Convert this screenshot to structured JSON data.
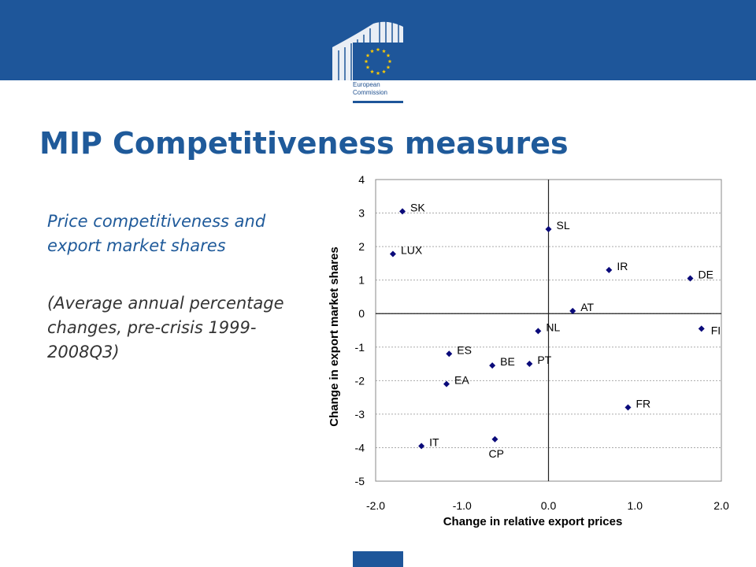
{
  "header": {
    "logo_line1": "European",
    "logo_line2": "Commission",
    "title": "MIP Competitiveness measures"
  },
  "body": {
    "subtitle": "Price competitiveness and export market shares",
    "note": "(Average annual percentage changes, pre-crisis 1999-2008Q3)"
  },
  "colors": {
    "brand_blue": "#1e569a",
    "marker": "#0a0a7a",
    "flag_star": "#ffcc00"
  },
  "chart_data": {
    "type": "scatter",
    "xlabel": "Change in relative export prices",
    "ylabel": "Change in export market shares",
    "xlim": [
      -2.0,
      2.0
    ],
    "ylim": [
      -5,
      4
    ],
    "xticks": [
      "-2.0",
      "-1.0",
      "0.0",
      "1.0",
      "2.0"
    ],
    "yticks": [
      "4",
      "3",
      "2",
      "1",
      "0",
      "-1",
      "-2",
      "-3",
      "-4",
      "-5"
    ],
    "grid": true,
    "points": [
      {
        "label": "SK",
        "x": -1.69,
        "y": 3.05
      },
      {
        "label": "SL",
        "x": 0.0,
        "y": 2.52
      },
      {
        "label": "LUX",
        "x": -1.8,
        "y": 1.78
      },
      {
        "label": "IR",
        "x": 0.7,
        "y": 1.3
      },
      {
        "label": "DE",
        "x": 1.64,
        "y": 1.05
      },
      {
        "label": "AT",
        "x": 0.28,
        "y": 0.08
      },
      {
        "label": "FI",
        "x": 1.77,
        "y": -0.45
      },
      {
        "label": "NL",
        "x": -0.12,
        "y": -0.52
      },
      {
        "label": "ES",
        "x": -1.15,
        "y": -1.2
      },
      {
        "label": "PT",
        "x": -0.22,
        "y": -1.5
      },
      {
        "label": "BE",
        "x": -0.65,
        "y": -1.55
      },
      {
        "label": "EA",
        "x": -1.18,
        "y": -2.1
      },
      {
        "label": "FR",
        "x": 0.92,
        "y": -2.8
      },
      {
        "label": "CP",
        "x": -0.62,
        "y": -3.75
      },
      {
        "label": "IT",
        "x": -1.47,
        "y": -3.95
      }
    ]
  }
}
